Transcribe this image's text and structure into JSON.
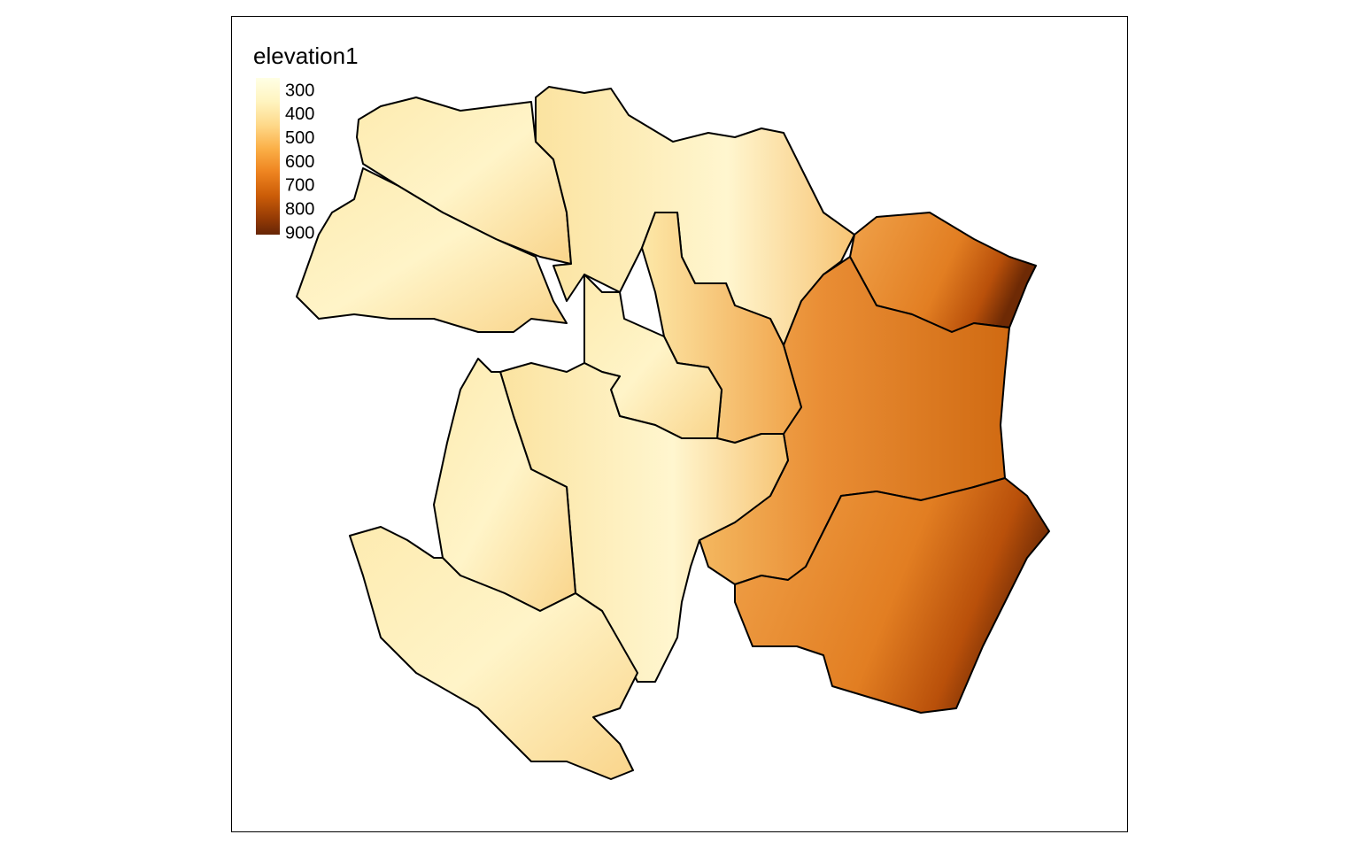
{
  "legend": {
    "title": "elevation1",
    "labels": [
      "300",
      "400",
      "500",
      "600",
      "700",
      "800",
      "900"
    ]
  }
}
